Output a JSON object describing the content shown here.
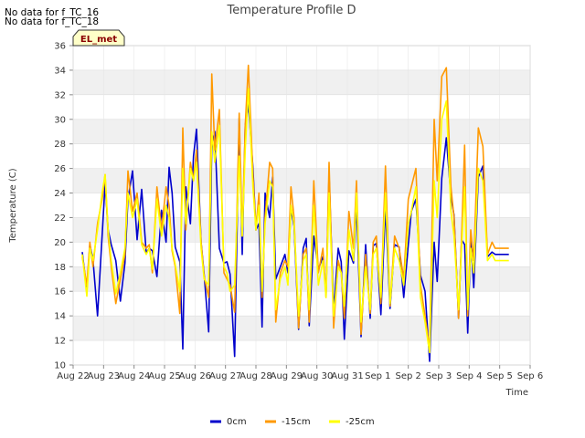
{
  "notices": [
    "No data for f_TC_16",
    "No data for f_TC_18"
  ],
  "badge": "EL_met",
  "chart_data": {
    "type": "line",
    "title": "Temperature Profile D",
    "xlabel": "Time",
    "ylabel": "Temperature (C)",
    "ylim": [
      10,
      36
    ],
    "yticks": [
      10,
      12,
      14,
      16,
      18,
      20,
      22,
      24,
      26,
      28,
      30,
      32,
      34,
      36
    ],
    "xlim": [
      0,
      15
    ],
    "xticks": [
      0,
      1,
      2,
      3,
      4,
      5,
      6,
      7,
      8,
      9,
      10,
      11,
      12,
      13,
      14,
      15
    ],
    "xtick_labels": [
      "Aug 22",
      "Aug 23",
      "Aug 24",
      "Aug 25",
      "Aug 26",
      "Aug 27",
      "Aug 28",
      "Aug 29",
      "Aug 30",
      "Aug 31",
      "Sep 1",
      "Sep 2",
      "Sep 3",
      "Sep 4",
      "Sep 5",
      "Sep 6"
    ],
    "grid": true,
    "legend_position": "bottom",
    "series": [
      {
        "name": "0cm",
        "color": "#0000cc",
        "x": [
          0.3,
          0.45,
          0.55,
          0.65,
          0.8,
          0.95,
          1.05,
          1.15,
          1.25,
          1.4,
          1.55,
          1.7,
          1.8,
          1.95,
          2.1,
          2.25,
          2.4,
          2.5,
          2.6,
          2.75,
          2.9,
          3.05,
          3.15,
          3.25,
          3.35,
          3.5,
          3.6,
          3.7,
          3.85,
          3.95,
          4.05,
          4.2,
          4.3,
          4.45,
          4.55,
          4.65,
          4.8,
          4.95,
          5.05,
          5.15,
          5.3,
          5.45,
          5.55,
          5.65,
          5.75,
          5.9,
          6.0,
          6.1,
          6.2,
          6.3,
          6.45,
          6.55,
          6.65,
          6.8,
          6.95,
          7.05,
          7.15,
          7.25,
          7.4,
          7.55,
          7.65,
          7.75,
          7.9,
          8.05,
          8.2,
          8.3,
          8.4,
          8.55,
          8.7,
          8.8,
          8.9,
          9.05,
          9.2,
          9.3,
          9.45,
          9.6,
          9.75,
          9.85,
          9.95,
          10.1,
          10.25,
          10.4,
          10.55,
          10.7,
          10.85,
          11.0,
          11.1,
          11.25,
          11.4,
          11.55,
          11.7,
          11.85,
          11.95,
          12.1,
          12.25,
          12.4,
          12.5,
          12.65,
          12.75,
          12.85,
          12.95,
          13.05,
          13.15,
          13.3,
          13.45,
          13.6,
          13.75,
          13.85,
          13.95,
          14.05,
          14.15,
          14.3
        ],
        "y": [
          19.2,
          16.0,
          19.8,
          18.6,
          14.0,
          20.5,
          24.8,
          21.0,
          19.8,
          18.5,
          15.2,
          18.3,
          23.5,
          25.8,
          20.2,
          24.3,
          19.1,
          19.5,
          19.3,
          17.2,
          22.6,
          20.0,
          26.1,
          24.0,
          19.6,
          18.4,
          11.3,
          24.5,
          21.5,
          27.0,
          29.2,
          20.0,
          17.4,
          12.7,
          27.8,
          29.0,
          19.5,
          18.3,
          18.4,
          17.4,
          10.7,
          30.1,
          19.0,
          29.5,
          31.2,
          26.1,
          21.0,
          21.5,
          13.1,
          24.0,
          22.0,
          25.3,
          17.0,
          18.0,
          19.0,
          17.5,
          22.7,
          21.3,
          12.9,
          19.5,
          20.3,
          13.2,
          20.5,
          17.8,
          18.8,
          15.8,
          25.5,
          14.4,
          19.5,
          18.4,
          12.1,
          19.3,
          18.3,
          23.0,
          12.3,
          19.8,
          13.8,
          19.7,
          19.9,
          14.1,
          22.8,
          14.6,
          19.8,
          19.6,
          15.5,
          19.8,
          22.5,
          23.5,
          17.3,
          16.0,
          10.3,
          20.0,
          16.8,
          25.2,
          28.5,
          23.7,
          22.2,
          13.8,
          20.2,
          19.8,
          12.6,
          20.1,
          16.3,
          25.3,
          26.2,
          18.8,
          19.2,
          19.0,
          19.0,
          19.0,
          19.0,
          19.0
        ]
      },
      {
        "name": "-15cm",
        "color": "#ff9900",
        "x": [
          0.3,
          0.45,
          0.55,
          0.65,
          0.8,
          0.95,
          1.05,
          1.15,
          1.25,
          1.4,
          1.55,
          1.7,
          1.8,
          1.95,
          2.1,
          2.25,
          2.4,
          2.5,
          2.6,
          2.75,
          2.9,
          3.05,
          3.15,
          3.25,
          3.35,
          3.5,
          3.6,
          3.7,
          3.85,
          3.95,
          4.05,
          4.2,
          4.3,
          4.45,
          4.55,
          4.65,
          4.8,
          4.95,
          5.05,
          5.15,
          5.3,
          5.45,
          5.55,
          5.65,
          5.75,
          5.9,
          6.0,
          6.1,
          6.2,
          6.3,
          6.45,
          6.55,
          6.65,
          6.8,
          6.95,
          7.05,
          7.15,
          7.25,
          7.4,
          7.55,
          7.65,
          7.75,
          7.9,
          8.05,
          8.2,
          8.3,
          8.4,
          8.55,
          8.7,
          8.8,
          8.9,
          9.05,
          9.2,
          9.3,
          9.45,
          9.6,
          9.75,
          9.85,
          9.95,
          10.1,
          10.25,
          10.4,
          10.55,
          10.7,
          10.85,
          11.0,
          11.1,
          11.25,
          11.4,
          11.55,
          11.7,
          11.85,
          11.95,
          12.1,
          12.25,
          12.4,
          12.5,
          12.65,
          12.75,
          12.85,
          12.95,
          13.05,
          13.15,
          13.3,
          13.45,
          13.6,
          13.75,
          13.85,
          13.95,
          14.05,
          14.15,
          14.3
        ],
        "y": [
          18.8,
          16.5,
          20.0,
          18.0,
          21.5,
          23.5,
          25.5,
          20.5,
          18.0,
          15.0,
          17.0,
          19.0,
          25.8,
          22.5,
          24.0,
          20.0,
          19.5,
          19.8,
          17.5,
          24.5,
          21.0,
          24.5,
          23.0,
          19.3,
          18.0,
          14.2,
          29.3,
          21.0,
          26.5,
          25.0,
          27.5,
          20.0,
          17.2,
          15.5,
          33.7,
          27.5,
          30.8,
          17.5,
          17.0,
          16.5,
          14.3,
          30.5,
          20.5,
          29.5,
          34.4,
          25.5,
          21.0,
          24.0,
          15.5,
          22.0,
          26.5,
          26.0,
          13.5,
          17.5,
          18.5,
          18.0,
          24.5,
          22.0,
          13.0,
          19.0,
          19.5,
          13.5,
          25.0,
          17.5,
          19.5,
          15.5,
          26.5,
          13.0,
          18.5,
          17.5,
          13.8,
          22.5,
          19.5,
          25.0,
          12.5,
          19.0,
          14.2,
          20.0,
          20.5,
          15.0,
          26.2,
          14.8,
          20.5,
          19.5,
          17.0,
          23.5,
          24.5,
          26.0,
          16.5,
          14.0,
          11.3,
          30.0,
          25.0,
          33.5,
          34.2,
          24.5,
          22.0,
          13.8,
          20.5,
          27.9,
          14.0,
          21.0,
          18.5,
          29.3,
          27.8,
          19.0,
          20.0,
          19.5,
          19.5,
          19.5,
          19.5,
          19.5
        ]
      },
      {
        "name": "-25cm",
        "color": "#ffff00",
        "x": [
          0.3,
          0.45,
          0.55,
          0.65,
          0.8,
          0.95,
          1.05,
          1.15,
          1.25,
          1.4,
          1.55,
          1.7,
          1.8,
          1.95,
          2.1,
          2.25,
          2.4,
          2.5,
          2.6,
          2.75,
          2.9,
          3.05,
          3.15,
          3.25,
          3.35,
          3.5,
          3.6,
          3.7,
          3.85,
          3.95,
          4.05,
          4.2,
          4.3,
          4.45,
          4.55,
          4.65,
          4.8,
          4.95,
          5.05,
          5.15,
          5.3,
          5.45,
          5.55,
          5.65,
          5.75,
          5.9,
          6.0,
          6.1,
          6.2,
          6.3,
          6.45,
          6.55,
          6.65,
          6.8,
          6.95,
          7.05,
          7.15,
          7.25,
          7.4,
          7.55,
          7.65,
          7.75,
          7.9,
          8.05,
          8.2,
          8.3,
          8.4,
          8.55,
          8.7,
          8.8,
          8.9,
          9.05,
          9.2,
          9.3,
          9.45,
          9.6,
          9.75,
          9.85,
          9.95,
          10.1,
          10.25,
          10.4,
          10.55,
          10.7,
          10.85,
          11.0,
          11.1,
          11.25,
          11.4,
          11.55,
          11.7,
          11.85,
          11.95,
          12.1,
          12.25,
          12.4,
          12.5,
          12.65,
          12.75,
          12.85,
          12.95,
          13.05,
          13.15,
          13.3,
          13.45,
          13.6,
          13.75,
          13.85,
          13.95,
          14.05,
          14.15,
          14.3
        ],
        "y": [
          19.0,
          15.6,
          19.5,
          18.5,
          21.0,
          24.0,
          25.5,
          21.0,
          18.5,
          15.8,
          17.5,
          19.5,
          24.0,
          22.0,
          23.5,
          19.8,
          19.0,
          19.5,
          17.8,
          23.5,
          20.5,
          23.0,
          22.0,
          19.5,
          18.2,
          16.0,
          26.0,
          21.5,
          26.0,
          25.0,
          26.5,
          19.5,
          17.0,
          16.5,
          29.0,
          26.5,
          29.5,
          18.0,
          17.5,
          16.0,
          16.5,
          27.0,
          20.5,
          27.5,
          32.5,
          24.5,
          21.0,
          23.0,
          16.0,
          21.5,
          25.0,
          24.5,
          14.5,
          17.0,
          18.0,
          16.5,
          23.0,
          21.5,
          14.0,
          18.5,
          19.0,
          14.5,
          23.0,
          16.5,
          18.5,
          15.5,
          24.0,
          14.0,
          18.0,
          17.5,
          14.8,
          21.0,
          18.5,
          24.0,
          13.5,
          18.0,
          14.5,
          19.0,
          19.5,
          15.5,
          24.0,
          15.0,
          19.5,
          18.5,
          16.5,
          21.5,
          22.5,
          24.5,
          15.5,
          13.5,
          11.0,
          25.0,
          22.0,
          30.0,
          31.5,
          22.5,
          20.5,
          14.5,
          19.5,
          24.5,
          14.5,
          19.5,
          17.5,
          26.0,
          25.0,
          18.5,
          19.0,
          18.5,
          18.5,
          18.5,
          18.5,
          18.5
        ]
      }
    ]
  }
}
